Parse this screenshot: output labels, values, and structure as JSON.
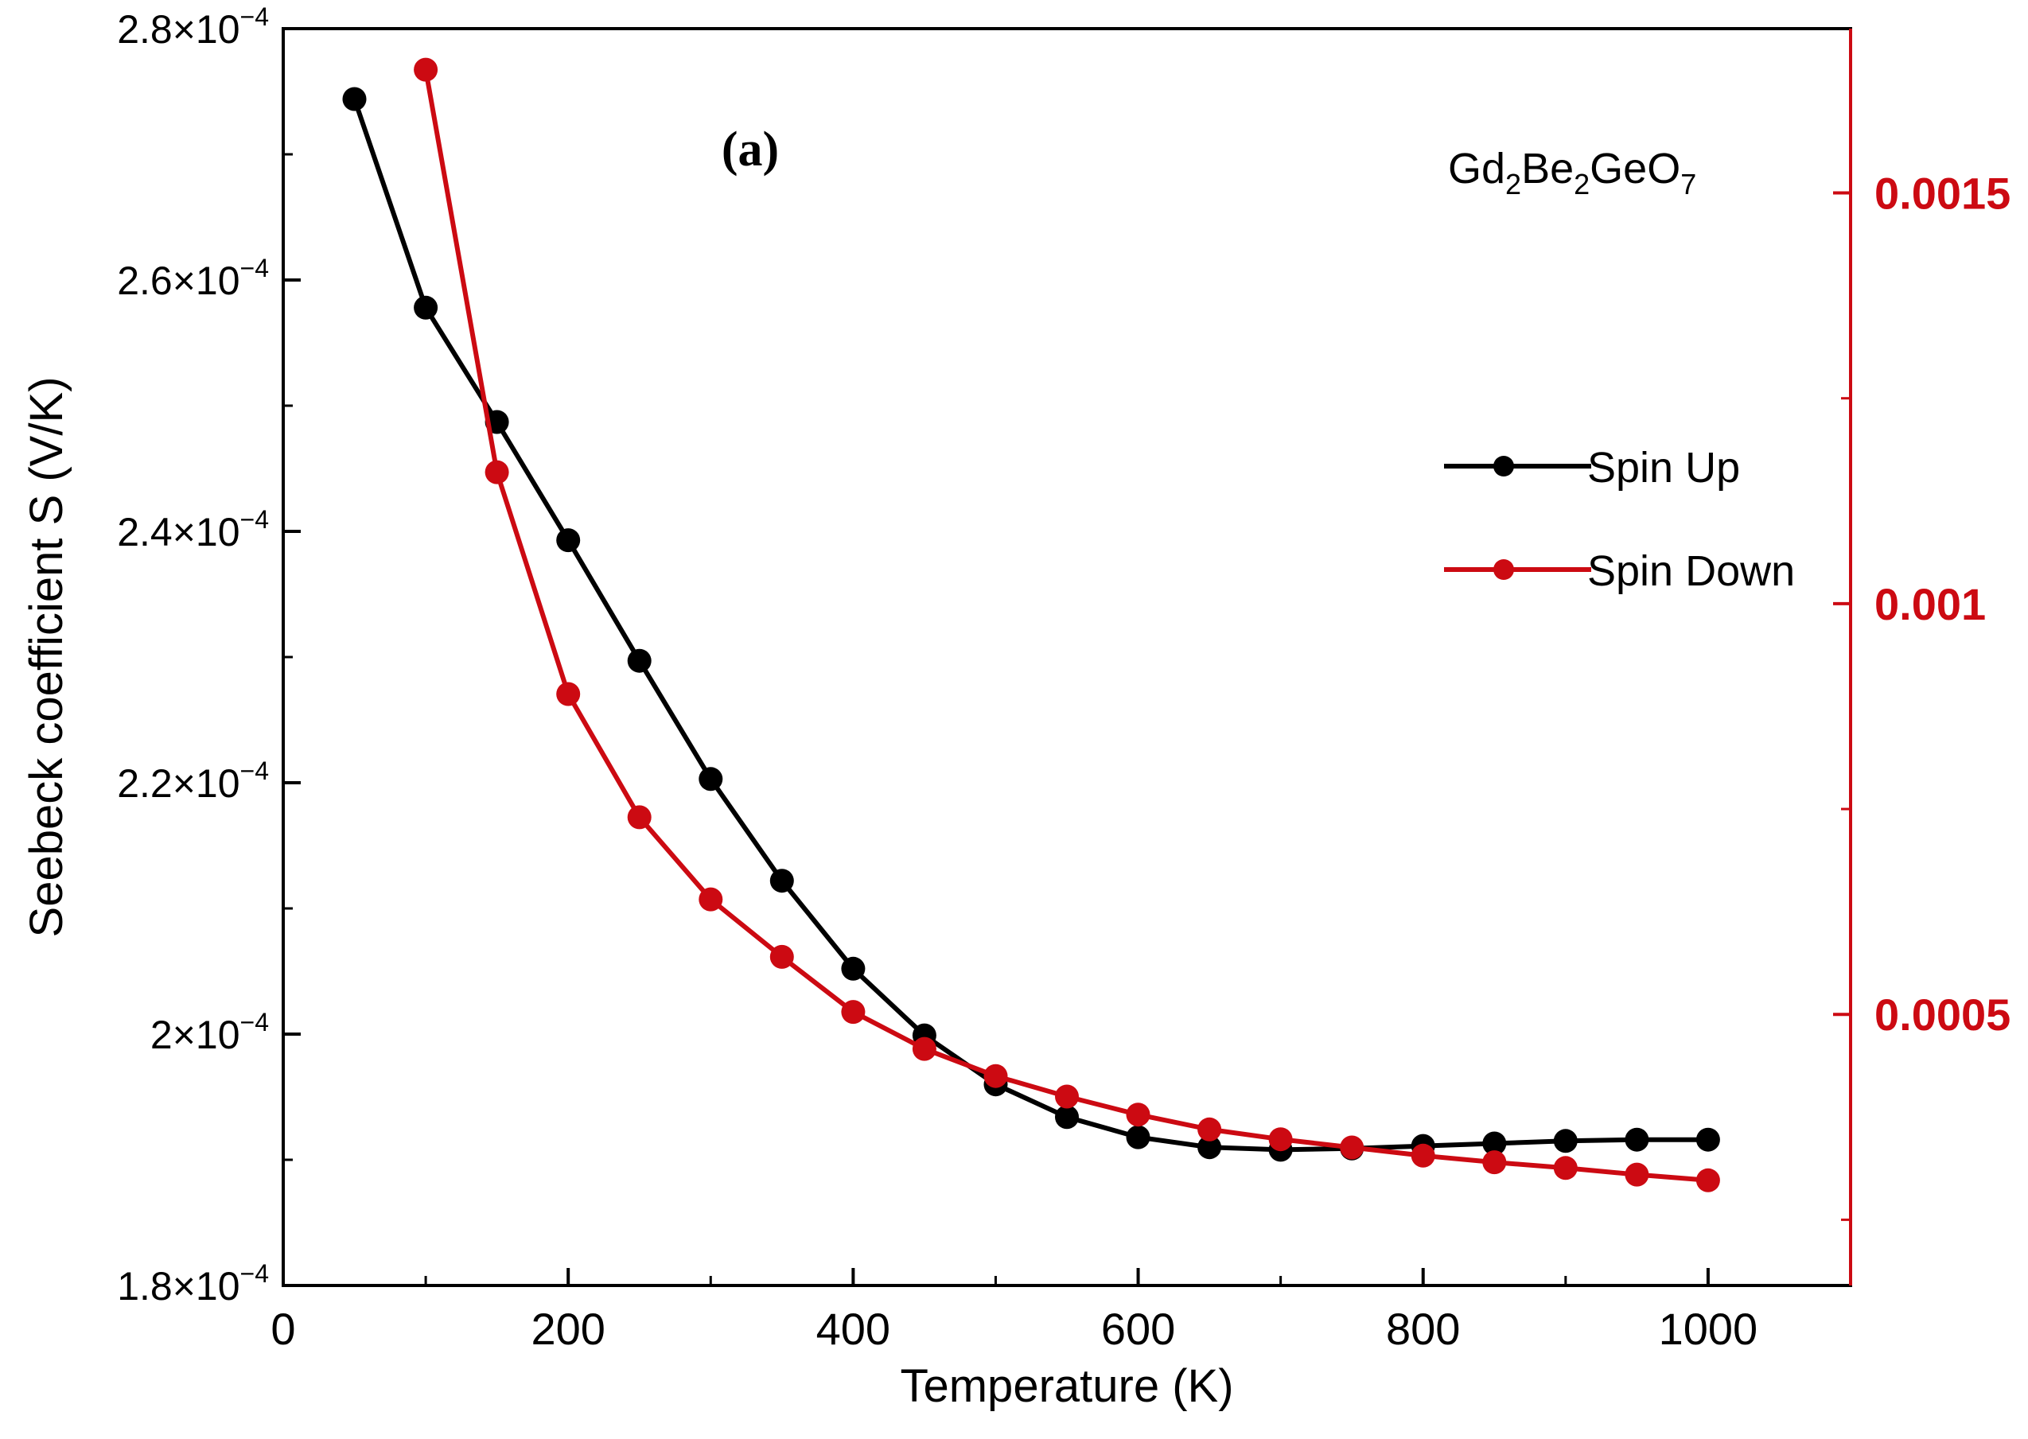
{
  "chart_data": {
    "type": "line",
    "panel_label": "(a)",
    "compound": {
      "base1": "Gd",
      "sub1": "2",
      "base2": "Be",
      "sub2": "2",
      "base3": "GeO",
      "sub3": "7"
    },
    "xlabel": "Temperature (K)",
    "ylabel": "Seebeck coefficient S (V/K)",
    "xlim": [
      0,
      1100
    ],
    "ylim_left": [
      0.00018,
      0.00028
    ],
    "ylim_right": [
      0.00017,
      0.0017
    ],
    "x_ticks": [
      0,
      200,
      400,
      600,
      800,
      1000
    ],
    "x_tick_labels": [
      "0",
      "200",
      "400",
      "600",
      "800",
      "1000"
    ],
    "y_left_ticks": [
      {
        "value": 0.00018,
        "mantissa": "1.8×10",
        "exponent": "−4"
      },
      {
        "value": 0.0002,
        "mantissa": "2×10",
        "exponent": "−4"
      },
      {
        "value": 0.00022,
        "mantissa": "2.2×10",
        "exponent": "−4"
      },
      {
        "value": 0.00024,
        "mantissa": "2.4×10",
        "exponent": "−4"
      },
      {
        "value": 0.00026,
        "mantissa": "2.6×10",
        "exponent": "−4"
      },
      {
        "value": 0.00028,
        "mantissa": "2.8×10",
        "exponent": "−4"
      }
    ],
    "y_right_ticks": [
      0.0005,
      0.001,
      0.0015
    ],
    "y_right_tick_labels": [
      "0.0005",
      "0.001",
      "0.0015"
    ],
    "series": [
      {
        "name": "Spin Up",
        "axis": "left",
        "color": "#000000",
        "x": [
          50,
          100,
          150,
          200,
          250,
          300,
          350,
          400,
          450,
          500,
          550,
          600,
          650,
          700,
          750,
          800,
          850,
          900,
          950,
          1000
        ],
        "values": [
          0.0002744,
          0.0002578,
          0.0002487,
          0.0002393,
          0.0002297,
          0.0002203,
          0.0002122,
          0.0002052,
          0.0001999,
          0.000196,
          0.0001934,
          0.0001918,
          0.000191,
          0.0001908,
          0.0001909,
          0.0001911,
          0.0001913,
          0.0001915,
          0.0001916,
          0.0001916
        ]
      },
      {
        "name": "Spin Down",
        "axis": "right",
        "color": "#cc0a12",
        "x": [
          100,
          150,
          200,
          250,
          300,
          350,
          400,
          450,
          500,
          550,
          600,
          650,
          700,
          750,
          800,
          850,
          900,
          950,
          1000
        ],
        "values": [
          0.00165,
          0.00116,
          0.00089,
          0.00074,
          0.00064,
          0.00057,
          0.000503,
          0.000458,
          0.000425,
          0.0004,
          0.000378,
          0.00036,
          0.000348,
          0.000338,
          0.000328,
          0.00032,
          0.000313,
          0.000305,
          0.000298
        ]
      }
    ]
  }
}
